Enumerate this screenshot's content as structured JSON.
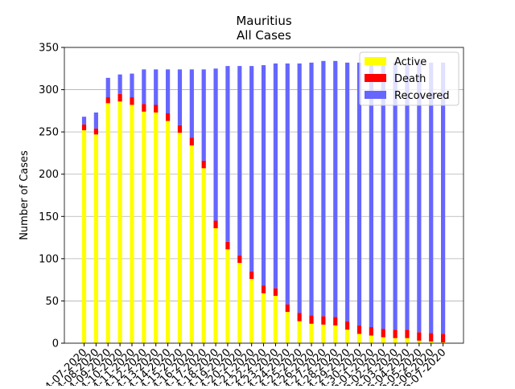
{
  "chart_data": {
    "type": "stacked-bar",
    "title": "Mauritius",
    "subtitle": "All Cases",
    "ylabel": "Number of Cases",
    "categories": [
      "04-07-2020",
      "04-08-2020",
      "04-09-2020",
      "04-10-2020",
      "04-11-2020",
      "04-12-2020",
      "04-13-2020",
      "04-14-2020",
      "04-15-2020",
      "04-16-2020",
      "04-17-2020",
      "04-18-2020",
      "04-19-2020",
      "04-20-2020",
      "04-21-2020",
      "04-22-2020",
      "04-23-2020",
      "04-24-2020",
      "04-25-2020",
      "04-26-2020",
      "04-27-2020",
      "04-28-2020",
      "04-29-2020",
      "04-30-2020",
      "05-01-2020",
      "05-02-2020",
      "05-03-2020",
      "05-04-2020",
      "05-05-2020",
      "05-06-2020",
      "05-07-2020"
    ],
    "series": [
      {
        "name": "Active",
        "color": "#ffff00",
        "values": [
          252,
          247,
          284,
          286,
          282,
          274,
          273,
          263,
          249,
          234,
          207,
          136,
          111,
          95,
          76,
          59,
          56,
          37,
          26,
          23,
          22,
          21,
          16,
          11,
          9,
          7,
          6,
          6,
          3,
          2,
          1
        ]
      },
      {
        "name": "Death",
        "color": "#ff0000",
        "values": [
          7,
          7,
          7,
          9,
          9,
          9,
          9,
          9,
          9,
          9,
          9,
          9,
          9,
          9,
          9,
          9,
          9,
          9,
          10,
          10,
          10,
          10,
          10,
          10,
          10,
          10,
          10,
          10,
          10,
          10,
          10
        ]
      },
      {
        "name": "Recovered",
        "color": "#6666ff",
        "values": [
          9,
          19,
          23,
          23,
          28,
          41,
          42,
          52,
          66,
          81,
          108,
          180,
          208,
          224,
          243,
          261,
          266,
          285,
          295,
          299,
          302,
          303,
          306,
          311,
          313,
          315,
          316,
          316,
          319,
          320,
          321
        ]
      }
    ],
    "ylim": [
      0,
      350
    ],
    "yticks": [
      0,
      50,
      100,
      150,
      200,
      250,
      300,
      350
    ],
    "grid": true,
    "legend": "upper right"
  }
}
